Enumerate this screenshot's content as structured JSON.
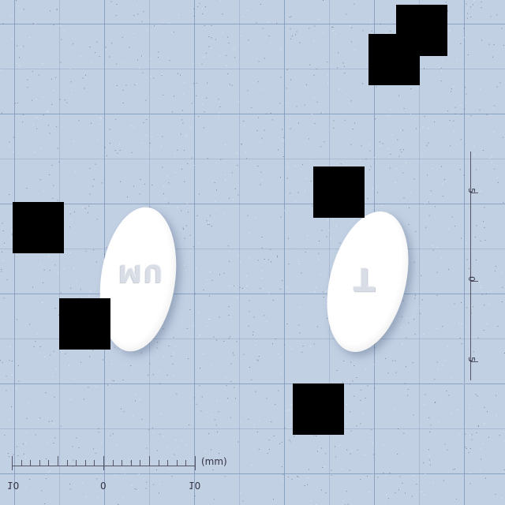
{
  "scale": {
    "unit": "(mm)",
    "horizontal_labels": [
      "10",
      "0",
      "10"
    ],
    "vertical_labels": [
      "5",
      "0",
      "5"
    ]
  },
  "pills": {
    "left_imprint": "MU",
    "right_imprint": "T"
  },
  "corner": {
    "line1": "",
    "line2": ""
  },
  "colors": {
    "background": "#c2d0e3",
    "pill": "#ffffff",
    "mask": "#000000"
  }
}
